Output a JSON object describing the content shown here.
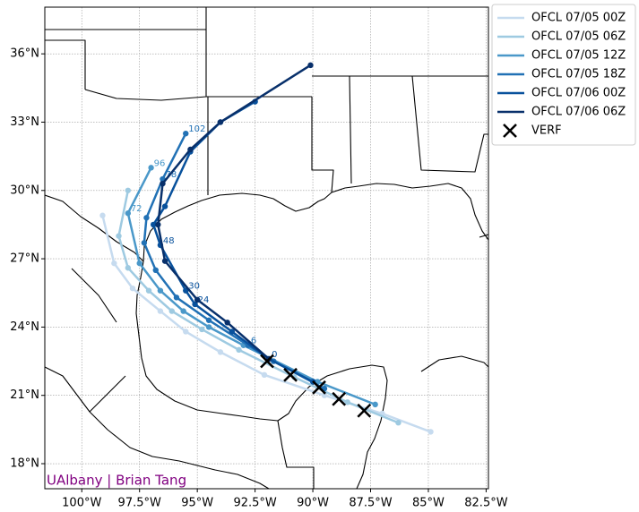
{
  "chart_data": {
    "type": "map",
    "credit": "UAlbany | Brian Tang",
    "xlim": [
      -101.6,
      -82.4
    ],
    "ylim": [
      16.9,
      38.05
    ],
    "xticks": [
      {
        "value": -100,
        "label": "100°W"
      },
      {
        "value": -97.5,
        "label": "97.5°W"
      },
      {
        "value": -95,
        "label": "95°W"
      },
      {
        "value": -92.5,
        "label": "92.5°W"
      },
      {
        "value": -90,
        "label": "90°W"
      },
      {
        "value": -87.5,
        "label": "87.5°W"
      },
      {
        "value": -85,
        "label": "85°W"
      },
      {
        "value": -82.5,
        "label": "82.5°W"
      }
    ],
    "yticks": [
      {
        "value": 18,
        "label": "18°N"
      },
      {
        "value": 21,
        "label": "21°N"
      },
      {
        "value": 24,
        "label": "24°N"
      },
      {
        "value": 27,
        "label": "27°N"
      },
      {
        "value": 30,
        "label": "30°N"
      },
      {
        "value": 33,
        "label": "33°N"
      },
      {
        "value": 36,
        "label": "36°N"
      }
    ],
    "grid": true,
    "legend": "outside-upper-right",
    "series": [
      {
        "name": "OFCL 07/05 00Z",
        "color": "#c6dbef",
        "marker": "o",
        "x": [
          -84.9,
          -87.0,
          -89.5,
          -92.1,
          -94.0,
          -95.5,
          -96.6,
          -97.8,
          -98.6,
          -99.1
        ],
        "values": [
          19.4,
          20.2,
          21.0,
          21.9,
          22.9,
          23.8,
          24.7,
          25.7,
          26.8,
          28.9
        ],
        "point_labels": [
          null,
          null,
          null,
          null,
          null,
          null,
          null,
          null,
          null,
          null
        ]
      },
      {
        "name": "OFCL 07/05 06Z",
        "color": "#9ecae1",
        "marker": "o",
        "x": [
          -86.3,
          -88.5,
          -90.8,
          -93.2,
          -94.8,
          -96.1,
          -97.1,
          -98.0,
          -98.4,
          -98.0
        ],
        "values": [
          19.8,
          20.7,
          21.8,
          23.0,
          23.9,
          24.7,
          25.6,
          26.6,
          28.0,
          30.0
        ],
        "point_labels": [
          null,
          null,
          null,
          null,
          null,
          null,
          null,
          null,
          null,
          null
        ]
      },
      {
        "name": "OFCL 07/05 12Z",
        "color": "#4a98c9",
        "marker": "o",
        "x": [
          -87.3,
          -89.8,
          -93.0,
          -94.5,
          -95.6,
          -96.6,
          -97.5,
          -98.0,
          -97.0
        ],
        "values": [
          20.6,
          21.6,
          23.2,
          24.0,
          24.7,
          25.6,
          26.8,
          29.0,
          31.0
        ],
        "point_labels": [
          null,
          null,
          null,
          null,
          null,
          null,
          null,
          "72",
          "96"
        ]
      },
      {
        "name": "OFCL 07/05 18Z",
        "color": "#2171b5",
        "marker": "o",
        "x": [
          -89.5,
          -91.7,
          -92.8,
          -94.5,
          -95.9,
          -96.8,
          -97.3,
          -97.2,
          -96.5,
          -95.5
        ],
        "values": [
          21.3,
          22.5,
          23.2,
          24.3,
          25.3,
          26.5,
          27.7,
          28.8,
          30.5,
          32.5
        ],
        "point_labels": [
          null,
          null,
          "6",
          null,
          null,
          null,
          null,
          null,
          "78",
          "102"
        ]
      },
      {
        "name": "OFCL 07/06 00Z",
        "color": "#08519c",
        "marker": "o",
        "x": [
          -90.0,
          -91.9,
          -93.5,
          -95.1,
          -95.5,
          -96.6,
          -96.9,
          -96.4,
          -95.3,
          -94.0,
          -92.5
        ],
        "values": [
          21.6,
          22.6,
          23.8,
          25.0,
          25.6,
          27.6,
          28.5,
          29.3,
          31.7,
          33.0,
          33.9
        ],
        "point_labels": [
          null,
          "0",
          null,
          "24",
          "30",
          "48",
          null,
          null,
          null,
          null,
          null
        ]
      },
      {
        "name": "OFCL 07/06 06Z",
        "color": "#08306b",
        "marker": "o",
        "x": [
          -91.9,
          -93.7,
          -95.0,
          -96.4,
          -96.7,
          -96.5,
          -95.3,
          -94.0,
          -90.1
        ],
        "values": [
          22.6,
          24.2,
          25.2,
          26.9,
          28.5,
          30.3,
          31.8,
          33.0,
          35.5
        ],
        "point_labels": [
          null,
          null,
          null,
          null,
          null,
          null,
          null,
          null,
          null
        ]
      },
      {
        "name": "VERF",
        "color": "#000000",
        "marker": "x",
        "x": [
          -91.98,
          -90.97,
          -89.73,
          -88.87,
          -87.78
        ],
        "values": [
          22.5,
          21.9,
          21.35,
          20.84,
          20.33
        ]
      }
    ]
  }
}
